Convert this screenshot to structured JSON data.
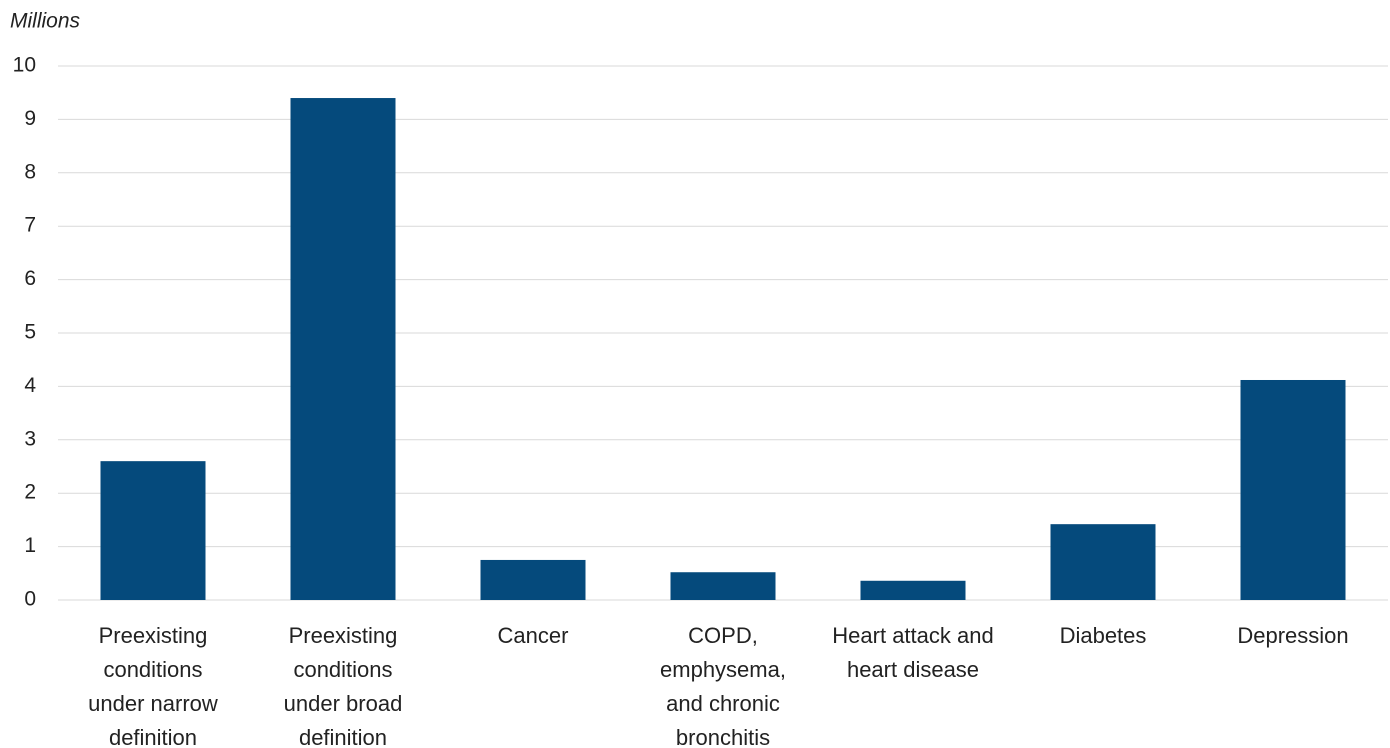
{
  "chart_data": {
    "type": "bar",
    "y_axis_label": "Millions",
    "categories": [
      "Preexisting\nconditions\nunder narrow\ndefinition",
      "Preexisting\nconditions\nunder broad\ndefinition",
      "Cancer",
      "COPD,\nemphysema,\nand chronic\nbronchitis",
      "Heart attack and\nheart disease",
      "Diabetes",
      "Depression"
    ],
    "values": [
      2.6,
      9.4,
      0.75,
      0.52,
      0.36,
      1.42,
      4.12
    ],
    "color": "#054a7c",
    "ylim": [
      0,
      10
    ],
    "yticks": [
      0,
      1,
      2,
      3,
      4,
      5,
      6,
      7,
      8,
      9,
      10
    ],
    "grid": true
  }
}
